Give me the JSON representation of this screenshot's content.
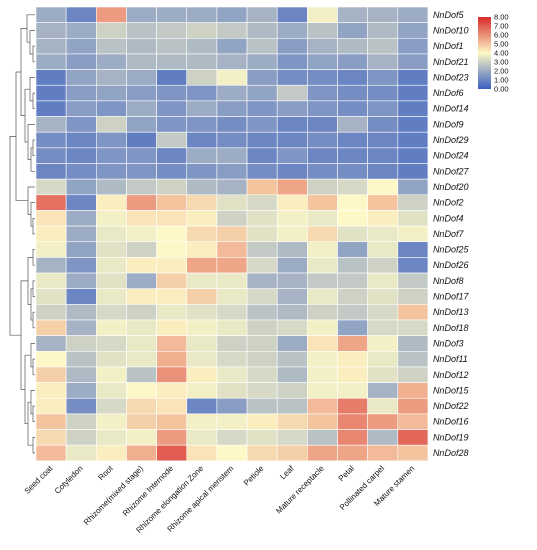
{
  "chart_data": {
    "type": "heatmap",
    "title": "",
    "xlabel": "",
    "ylabel": "",
    "columns": [
      "Seed coat",
      "Cotyledon",
      "Root",
      "Rhizome(mixed stage)",
      "Rhizome Internode",
      "Rhizome elongation Zone",
      "Rhizome apical meristem",
      "Petiole",
      "Leaf",
      "Mature receptacle",
      "Petal",
      "Pollinated carpel",
      "Mature stamen"
    ],
    "rows": [
      "NnDof5",
      "NnDof10",
      "NnDof1",
      "NnDof21",
      "NnDof23",
      "NnDof6",
      "NnDof14",
      "NnDof9",
      "NnDof29",
      "NnDof24",
      "NnDof27",
      "NnDof20",
      "NnDof2",
      "NnDof4",
      "NnDof7",
      "NnDof25",
      "NnDof26",
      "NnDof8",
      "NnDof17",
      "NnDof13",
      "NnDof18",
      "NnDof3",
      "NnDof11",
      "NnDof12",
      "NnDof15",
      "NnDof22",
      "NnDof16",
      "NnDof19",
      "NnDof28"
    ],
    "values": [
      [
        2.0,
        1.0,
        5.8,
        2.0,
        2.0,
        2.0,
        1.8,
        2.2,
        1.0,
        3.8,
        2.2,
        2.2,
        2.0
      ],
      [
        2.2,
        2.0,
        3.0,
        2.6,
        2.8,
        3.0,
        2.8,
        2.4,
        2.0,
        2.6,
        1.8,
        2.4,
        1.8
      ],
      [
        2.2,
        1.8,
        2.6,
        2.4,
        2.6,
        2.4,
        1.8,
        2.6,
        1.6,
        2.2,
        2.4,
        2.6,
        1.6
      ],
      [
        2.0,
        1.6,
        2.0,
        2.4,
        2.4,
        2.4,
        2.2,
        2.0,
        1.4,
        1.8,
        1.6,
        2.2,
        1.6
      ],
      [
        0.8,
        1.8,
        2.2,
        2.0,
        0.8,
        3.0,
        3.8,
        1.6,
        1.2,
        1.2,
        1.0,
        1.4,
        0.8
      ],
      [
        0.8,
        1.6,
        1.8,
        1.6,
        1.4,
        1.4,
        2.0,
        1.8,
        2.8,
        1.4,
        1.2,
        1.2,
        0.8
      ],
      [
        0.8,
        1.6,
        1.4,
        2.0,
        1.4,
        2.0,
        1.6,
        1.4,
        1.6,
        1.4,
        1.2,
        1.4,
        0.8
      ],
      [
        2.2,
        1.4,
        3.0,
        1.8,
        1.4,
        1.4,
        1.2,
        1.4,
        1.0,
        1.0,
        2.2,
        1.2,
        0.8
      ],
      [
        1.2,
        1.0,
        1.4,
        0.8,
        2.8,
        1.0,
        1.2,
        1.0,
        1.0,
        1.2,
        1.0,
        1.0,
        0.8
      ],
      [
        1.2,
        1.0,
        1.4,
        1.4,
        1.0,
        2.0,
        2.0,
        1.0,
        1.4,
        1.0,
        1.0,
        1.0,
        0.8
      ],
      [
        1.0,
        1.2,
        1.4,
        1.4,
        1.2,
        1.4,
        1.6,
        1.2,
        1.0,
        1.2,
        1.2,
        1.0,
        0.8
      ],
      [
        3.2,
        1.8,
        2.4,
        2.8,
        3.0,
        2.4,
        2.2,
        5.0,
        5.6,
        3.0,
        3.2,
        4.0,
        1.8
      ],
      [
        6.6,
        1.0,
        4.2,
        5.8,
        5.0,
        4.6,
        3.4,
        3.2,
        4.2,
        5.0,
        4.0,
        5.0,
        3.0
      ],
      [
        4.4,
        2.0,
        3.8,
        4.4,
        4.4,
        4.2,
        3.0,
        3.4,
        3.8,
        3.6,
        4.0,
        4.2,
        3.4
      ],
      [
        4.2,
        2.0,
        3.6,
        3.8,
        4.0,
        4.6,
        4.8,
        3.4,
        3.8,
        4.6,
        3.4,
        3.6,
        3.8
      ],
      [
        3.8,
        1.8,
        3.4,
        3.0,
        4.0,
        4.2,
        5.2,
        2.8,
        2.4,
        3.8,
        1.8,
        3.6,
        1.0
      ],
      [
        2.2,
        1.4,
        3.6,
        4.2,
        4.2,
        5.6,
        5.6,
        3.2,
        2.0,
        3.6,
        2.6,
        3.0,
        1.0
      ],
      [
        3.6,
        2.0,
        3.4,
        2.0,
        4.8,
        3.6,
        3.6,
        2.2,
        2.2,
        2.8,
        2.8,
        3.6,
        2.8
      ],
      [
        3.4,
        1.0,
        3.6,
        4.2,
        4.2,
        4.8,
        3.6,
        3.2,
        2.2,
        3.6,
        3.0,
        3.4,
        3.0
      ],
      [
        3.0,
        2.4,
        3.2,
        3.0,
        3.6,
        3.4,
        3.2,
        2.6,
        2.4,
        3.0,
        2.8,
        3.2,
        5.0
      ],
      [
        4.8,
        2.2,
        3.8,
        3.6,
        4.2,
        3.8,
        3.6,
        3.0,
        3.2,
        3.8,
        1.8,
        3.2,
        3.2
      ],
      [
        2.2,
        3.0,
        3.2,
        3.6,
        5.2,
        3.6,
        3.0,
        3.0,
        2.0,
        4.4,
        5.6,
        3.8,
        2.4
      ],
      [
        4.0,
        2.6,
        3.4,
        3.6,
        5.4,
        3.6,
        3.2,
        3.0,
        2.6,
        3.8,
        4.2,
        3.6,
        2.6
      ],
      [
        4.8,
        2.4,
        3.8,
        2.6,
        6.0,
        4.2,
        3.6,
        3.2,
        2.4,
        3.8,
        4.2,
        3.4,
        3.0
      ],
      [
        4.2,
        2.0,
        3.6,
        4.0,
        4.2,
        3.8,
        3.4,
        3.2,
        3.0,
        3.8,
        3.8,
        2.2,
        5.4
      ],
      [
        4.2,
        1.2,
        3.2,
        4.6,
        4.4,
        1.0,
        1.6,
        2.6,
        2.6,
        5.2,
        6.4,
        3.6,
        5.8
      ],
      [
        5.0,
        3.0,
        3.8,
        4.8,
        5.0,
        3.8,
        3.8,
        4.2,
        4.6,
        5.0,
        6.2,
        5.8,
        5.2
      ],
      [
        4.6,
        3.0,
        3.6,
        3.8,
        5.8,
        3.6,
        3.2,
        3.4,
        3.2,
        2.6,
        6.2,
        2.4,
        6.8
      ],
      [
        5.2,
        3.6,
        4.2,
        5.4,
        7.0,
        4.4,
        4.0,
        4.6,
        4.8,
        5.6,
        5.6,
        5.2,
        5.0
      ]
    ],
    "color_scale": {
      "min": 0,
      "max": 8,
      "ticks": [
        "8.00",
        "7.00",
        "6.00",
        "5.00",
        "4.00",
        "3.00",
        "2.00",
        "1.00",
        "0.00"
      ],
      "colors": [
        "#3b5fc2",
        "#fdf8c6",
        "#d7292b"
      ]
    },
    "dendrogram": "left",
    "legend_position": "top-right"
  }
}
